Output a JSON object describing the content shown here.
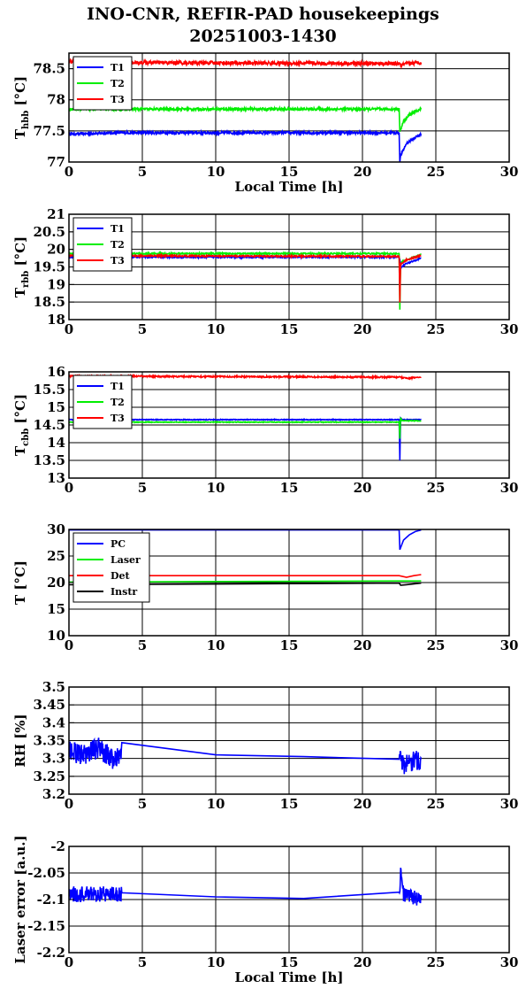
{
  "title": "INO-CNR, REFIR-PAD housekeepings",
  "subtitle": "20251003-1430",
  "chart_data": [
    {
      "type": "line",
      "ylabel_main": "T",
      "ylabel_sub": "hbb",
      "ylabel_unit": "[°C]",
      "xlabel": "Local Time [h]",
      "xlim": [
        0,
        30
      ],
      "ylim": [
        77,
        78.75
      ],
      "yticks": [
        77,
        77.5,
        78,
        78.5
      ],
      "ytick_labels": [
        "77",
        "77.5",
        "78",
        "78.5"
      ],
      "xticks": [
        0,
        5,
        10,
        15,
        20,
        25,
        30
      ],
      "xtick_labels": [
        "0",
        "5",
        "10",
        "15",
        "20",
        "25",
        "30"
      ],
      "grid": true,
      "legend": "top-left",
      "series": [
        {
          "name": "T1",
          "color": "#0000ff",
          "x": [
            0,
            3.5,
            22.5,
            22.55,
            22.6,
            23,
            23.5,
            24
          ],
          "y": [
            77.45,
            77.47,
            77.47,
            77.0,
            77.1,
            77.3,
            77.38,
            77.45
          ],
          "noise": 0.02
        },
        {
          "name": "T2",
          "color": "#00ee00",
          "x": [
            0,
            3.5,
            22.5,
            22.55,
            22.8,
            23.3,
            24
          ],
          "y": [
            77.85,
            77.85,
            77.85,
            77.5,
            77.65,
            77.78,
            77.85
          ],
          "noise": 0.02
        },
        {
          "name": "T3",
          "color": "#ff0000",
          "x": [
            0,
            3.5,
            22.5,
            22.6,
            23,
            24
          ],
          "y": [
            78.62,
            78.6,
            78.58,
            78.55,
            78.58,
            78.6
          ],
          "noise": 0.03
        }
      ]
    },
    {
      "type": "line",
      "ylabel_main": "T",
      "ylabel_sub": "rbb",
      "ylabel_unit": "[°C]",
      "xlabel": "",
      "xlim": [
        0,
        30
      ],
      "ylim": [
        18,
        21
      ],
      "yticks": [
        18,
        18.5,
        19,
        19.5,
        20,
        20.5,
        21
      ],
      "ytick_labels": [
        "18",
        "18.5",
        "19",
        "19.5",
        "20",
        "20.5",
        "21"
      ],
      "xticks": [
        0,
        5,
        10,
        15,
        20,
        25,
        30
      ],
      "xtick_labels": [
        "0",
        "5",
        "10",
        "15",
        "20",
        "25",
        "30"
      ],
      "grid": true,
      "legend": "top-left",
      "series": [
        {
          "name": "T1",
          "color": "#0000ff",
          "x": [
            0,
            22.5,
            22.6,
            22.65,
            23,
            24
          ],
          "y": [
            19.78,
            19.78,
            19.6,
            19.5,
            19.6,
            19.75
          ],
          "noise": 0.02
        },
        {
          "name": "T2",
          "color": "#00ee00",
          "x": [
            0,
            22.5,
            22.55,
            22.6,
            22.7,
            23,
            24
          ],
          "y": [
            19.88,
            19.88,
            18.3,
            19.55,
            19.65,
            19.7,
            19.85
          ],
          "noise": 0.02
        },
        {
          "name": "T3",
          "color": "#ff0000",
          "x": [
            0,
            22.5,
            22.55,
            22.6,
            22.7,
            23,
            24
          ],
          "y": [
            19.82,
            19.8,
            18.5,
            19.6,
            19.6,
            19.7,
            19.82
          ],
          "noise": 0.02
        }
      ]
    },
    {
      "type": "line",
      "ylabel_main": "T",
      "ylabel_sub": "cbb",
      "ylabel_unit": "[°C]",
      "xlabel": "",
      "xlim": [
        0,
        30
      ],
      "ylim": [
        13,
        16
      ],
      "yticks": [
        13,
        13.5,
        14,
        14.5,
        15,
        15.5,
        16
      ],
      "ytick_labels": [
        "13",
        "13.5",
        "14",
        "14.5",
        "15",
        "15.5",
        "16"
      ],
      "xticks": [
        0,
        5,
        10,
        15,
        20,
        25,
        30
      ],
      "xtick_labels": [
        "0",
        "5",
        "10",
        "15",
        "20",
        "25",
        "30"
      ],
      "grid": true,
      "legend": "top-left",
      "series": [
        {
          "name": "T1",
          "color": "#0000ff",
          "x": [
            0,
            22.5,
            22.55,
            22.6,
            22.7,
            24
          ],
          "y": [
            14.65,
            14.65,
            13.5,
            14.7,
            14.65,
            14.65
          ],
          "noise": 0.01
        },
        {
          "name": "T2",
          "color": "#00ee00",
          "x": [
            0,
            22.5,
            22.55,
            22.6,
            22.7,
            24
          ],
          "y": [
            14.58,
            14.58,
            14.1,
            14.7,
            14.62,
            14.62
          ],
          "noise": 0.01
        },
        {
          "name": "T3",
          "color": "#ff0000",
          "x": [
            0,
            22.5,
            23,
            24
          ],
          "y": [
            15.88,
            15.85,
            15.82,
            15.85
          ],
          "noise": 0.02
        }
      ]
    },
    {
      "type": "line",
      "ylabel_main": "T [°C]",
      "ylabel_sub": "",
      "ylabel_unit": "",
      "xlabel": "",
      "xlim": [
        0,
        30
      ],
      "ylim": [
        10,
        30
      ],
      "yticks": [
        10,
        15,
        20,
        25,
        30
      ],
      "ytick_labels": [
        "10",
        "15",
        "20",
        "25",
        "30"
      ],
      "xticks": [
        0,
        5,
        10,
        15,
        20,
        25,
        30
      ],
      "xtick_labels": [
        "0",
        "5",
        "10",
        "15",
        "20",
        "25",
        "30"
      ],
      "grid": true,
      "legend": "top-left",
      "series": [
        {
          "name": "PC",
          "color": "#0000ff",
          "x": [
            0,
            22.5,
            22.55,
            22.8,
            23.2,
            23.6,
            24
          ],
          "y": [
            29.9,
            29.9,
            26.2,
            28.0,
            29.0,
            29.6,
            29.9
          ],
          "noise": 0
        },
        {
          "name": "Laser",
          "color": "#00ee00",
          "x": [
            0,
            22.5,
            23,
            24
          ],
          "y": [
            20.1,
            20.3,
            20.3,
            20.3
          ],
          "noise": 0
        },
        {
          "name": "Det",
          "color": "#ff0000",
          "x": [
            0,
            22.5,
            23,
            23.5,
            24
          ],
          "y": [
            21.3,
            21.3,
            21.0,
            21.3,
            21.5
          ],
          "noise": 0
        },
        {
          "name": "Instr",
          "color": "#000000",
          "x": [
            0,
            22.5,
            22.6,
            23,
            24
          ],
          "y": [
            19.6,
            19.9,
            19.5,
            19.6,
            19.9
          ],
          "noise": 0
        }
      ]
    },
    {
      "type": "line",
      "ylabel_main": "RH [%]",
      "ylabel_sub": "",
      "ylabel_unit": "",
      "xlabel": "",
      "xlim": [
        0,
        30
      ],
      "ylim": [
        3.2,
        3.5
      ],
      "yticks": [
        3.2,
        3.25,
        3.3,
        3.35,
        3.4,
        3.45,
        3.5
      ],
      "ytick_labels": [
        "3.2",
        "3.25",
        "3.3",
        "3.35",
        "3.4",
        "3.45",
        "3.5"
      ],
      "xticks": [
        0,
        5,
        10,
        15,
        20,
        25,
        30
      ],
      "xtick_labels": [
        "0",
        "5",
        "10",
        "15",
        "20",
        "25",
        "30"
      ],
      "grid": true,
      "legend": "",
      "series": [
        {
          "name": "",
          "color": "#0000ff",
          "x": [
            0,
            1,
            2,
            3,
            3.6,
            10,
            16,
            22.5,
            23,
            24
          ],
          "y": [
            3.32,
            3.31,
            3.33,
            3.3,
            3.315,
            3.31,
            3.305,
            3.3,
            3.28,
            3.3
          ],
          "noise": 0.03,
          "noise_ranges": [
            [
              0,
              3.6
            ],
            [
              22.5,
              24
            ]
          ]
        }
      ]
    },
    {
      "type": "line",
      "ylabel_main": "Laser error [a.u.]",
      "ylabel_sub": "",
      "ylabel_unit": "",
      "xlabel": "Local Time [h]",
      "xlim": [
        0,
        30
      ],
      "ylim": [
        -2.2,
        -2
      ],
      "yticks": [
        -2.2,
        -2.15,
        -2.1,
        -2.05,
        -2
      ],
      "ytick_labels": [
        "-2.2",
        "-2.15",
        "-2.1",
        "-2.05",
        "-2"
      ],
      "xticks": [
        0,
        5,
        10,
        15,
        20,
        25,
        30
      ],
      "xtick_labels": [
        "0",
        "5",
        "10",
        "15",
        "20",
        "25",
        "30"
      ],
      "grid": true,
      "legend": "",
      "series": [
        {
          "name": "",
          "color": "#0000ff",
          "x": [
            0,
            3.6,
            10,
            16,
            22.5,
            22.6,
            22.8,
            24
          ],
          "y": [
            -2.09,
            -2.09,
            -2.095,
            -2.098,
            -2.1,
            -2.05,
            -2.09,
            -2.1
          ],
          "noise": 0.015,
          "noise_ranges": [
            [
              0,
              3.6
            ],
            [
              22.5,
              24
            ]
          ]
        }
      ]
    }
  ]
}
